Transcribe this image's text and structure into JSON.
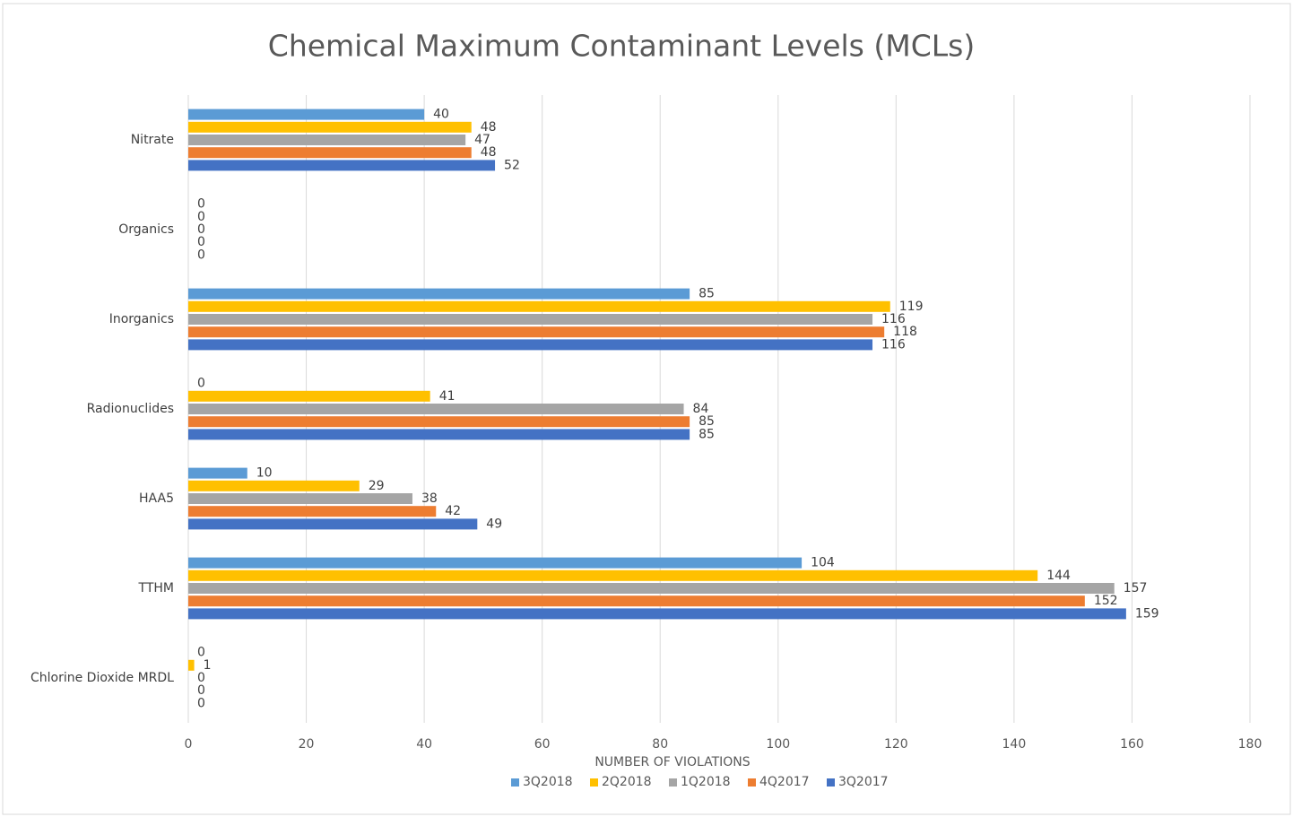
{
  "chart_data": {
    "type": "bar",
    "orientation": "horizontal",
    "title": "Chemical Maximum Contaminant Levels (MCLs)",
    "x_label": "NUMBER OF VIOLATIONS",
    "categories": [
      "Nitrate",
      "Organics",
      "Inorganics",
      "Radionuclides",
      "HAA5",
      "TTHM",
      "Chlorine Dioxide MRDL"
    ],
    "series": [
      {
        "name": "3Q2018",
        "color": "#5b9bd5",
        "values": [
          40,
          0,
          85,
          0,
          10,
          104,
          0
        ]
      },
      {
        "name": "2Q2018",
        "color": "#ffc000",
        "values": [
          48,
          0,
          119,
          41,
          29,
          144,
          1
        ]
      },
      {
        "name": "1Q2018",
        "color": "#a5a5a5",
        "values": [
          47,
          0,
          116,
          84,
          38,
          157,
          0
        ]
      },
      {
        "name": "4Q2017",
        "color": "#ed7d31",
        "values": [
          48,
          0,
          118,
          85,
          42,
          152,
          0
        ]
      },
      {
        "name": "3Q2017",
        "color": "#4472c4",
        "values": [
          52,
          0,
          116,
          85,
          49,
          159,
          0
        ]
      }
    ],
    "xlim": [
      0,
      180
    ],
    "xticks": [
      0,
      20,
      40,
      60,
      80,
      100,
      120,
      140,
      160,
      180
    ],
    "grid": true,
    "legend": "bottom"
  }
}
